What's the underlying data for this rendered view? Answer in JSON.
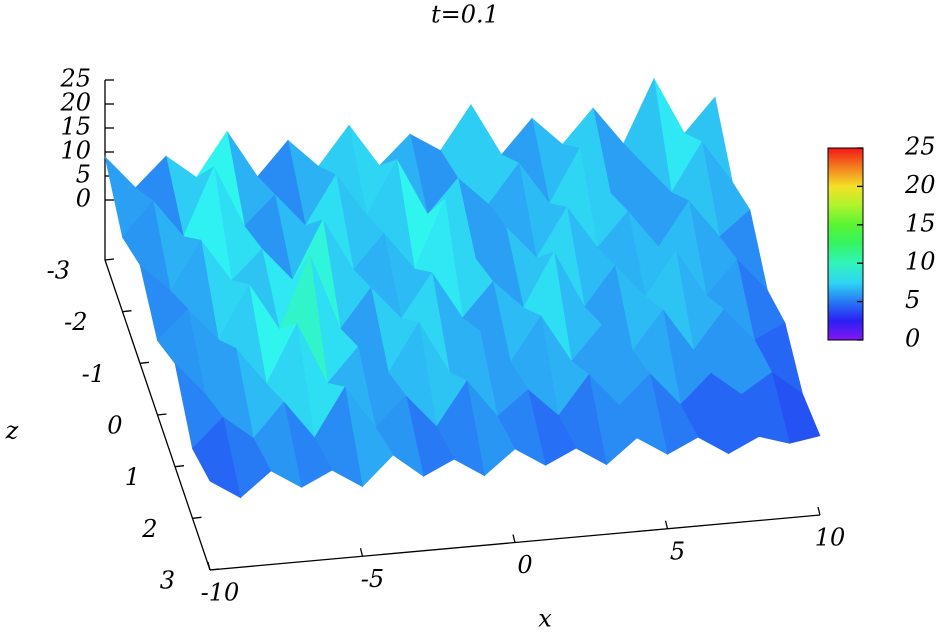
{
  "chart_data": {
    "type": "surface",
    "title": "t=0.1",
    "xlabel": "x",
    "ylabel": "z",
    "x": [
      -10,
      -9,
      -8,
      -7,
      -6,
      -5,
      -4,
      -3,
      -2,
      -1,
      0,
      1,
      2,
      3,
      4,
      5,
      6,
      7,
      8,
      9,
      10
    ],
    "y": [
      -3,
      -2,
      -1,
      0,
      1,
      2,
      3
    ],
    "values": [
      [
        9,
        2,
        8,
        3,
        12,
        2,
        9,
        3,
        11,
        2,
        8,
        4,
        13,
        2,
        9,
        3,
        10,
        2,
        15,
        3,
        10
      ],
      [
        3,
        10,
        2,
        16,
        3,
        9,
        2,
        12,
        3,
        14,
        2,
        9,
        3,
        11,
        2,
        13,
        3,
        9,
        2,
        12,
        3
      ],
      [
        8,
        2,
        12,
        3,
        9,
        2,
        14,
        3,
        10,
        2,
        16,
        3,
        9,
        2,
        12,
        3,
        10,
        2,
        11,
        3,
        8
      ],
      [
        3,
        9,
        2,
        13,
        3,
        18,
        2,
        10,
        3,
        12,
        2,
        9,
        3,
        14,
        2,
        10,
        3,
        12,
        2,
        9,
        2
      ],
      [
        9,
        2,
        11,
        3,
        15,
        2,
        9,
        3,
        13,
        2,
        10,
        3,
        12,
        2,
        9,
        3,
        11,
        2,
        10,
        3,
        6
      ],
      [
        2,
        8,
        3,
        10,
        2,
        12,
        3,
        9,
        2,
        11,
        3,
        8,
        2,
        10,
        3,
        9,
        2,
        8,
        3,
        7,
        2
      ],
      [
        6,
        2,
        7,
        3,
        6,
        2,
        8,
        3,
        6,
        2,
        7,
        3,
        6,
        2,
        7,
        3,
        6,
        2,
        5,
        3,
        4
      ]
    ],
    "xlim": [
      -10,
      10
    ],
    "ylim": [
      -3,
      3
    ],
    "zlim": [
      -12.5,
      25
    ],
    "xticks": [
      -10,
      -5,
      0,
      5,
      10
    ],
    "yticks": [
      -3,
      -2,
      -1,
      0,
      1,
      2,
      3
    ],
    "zticks": [
      0,
      5,
      10,
      15,
      20,
      25
    ],
    "colorbar": {
      "lim": [
        0,
        25
      ],
      "ticks": [
        0,
        5,
        10,
        15,
        20,
        25
      ]
    }
  }
}
